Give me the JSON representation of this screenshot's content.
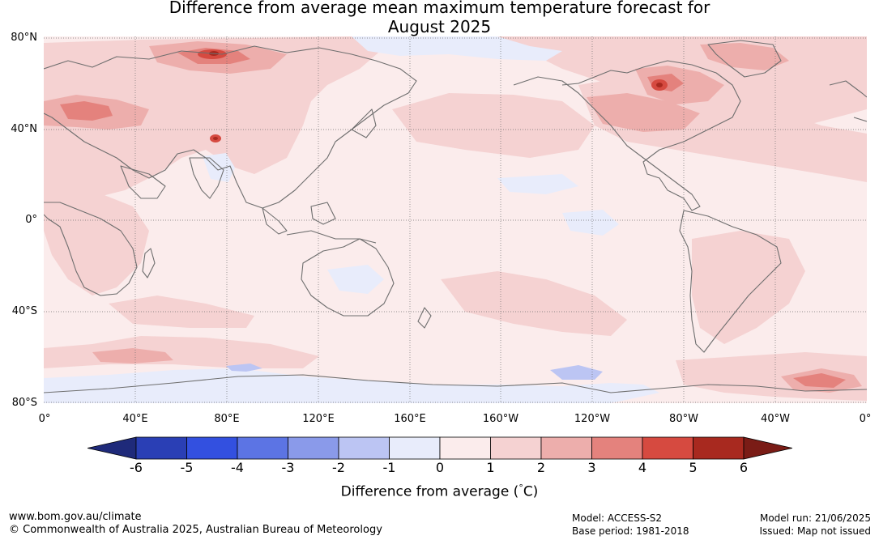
{
  "title": {
    "line1": "Difference from average mean maximum temperature forecast for",
    "line2": "August 2025"
  },
  "latitude_labels": [
    "80°N",
    "40°N",
    "0°",
    "40°S",
    "80°S"
  ],
  "longitude_labels": [
    "0°",
    "40°E",
    "80°E",
    "120°E",
    "160°E",
    "160°W",
    "120°W",
    "80°W",
    "40°W",
    "0°"
  ],
  "colorbar": {
    "title": "Difference from average (",
    "title_unit": "C)",
    "title_degree": "°",
    "ticks": [
      "-6",
      "-5",
      "-4",
      "-3",
      "-2",
      "-1",
      "0",
      "1",
      "2",
      "3",
      "4",
      "5",
      "6"
    ],
    "colors": {
      "below_min": "#1f2a7a",
      "bins": [
        "#2a3fb5",
        "#3350e0",
        "#5c74e4",
        "#8a9aea",
        "#bcc5f3",
        "#e8ecfb",
        "#fbecec",
        "#f5d2d2",
        "#edaeac",
        "#e4827d",
        "#d64a40",
        "#a8291f"
      ],
      "above_max": "#7a1c16"
    }
  },
  "footer": {
    "url": "www.bom.gov.au/climate",
    "copyright": "© Commonwealth of Australia 2025, Australian Bureau of Meteorology",
    "model": "Model: ACCESS-S2",
    "base_period": "Base period: 1981-2018",
    "model_run": "Model run: 21/06/2025",
    "issued": "Issued: Map not issued"
  }
}
